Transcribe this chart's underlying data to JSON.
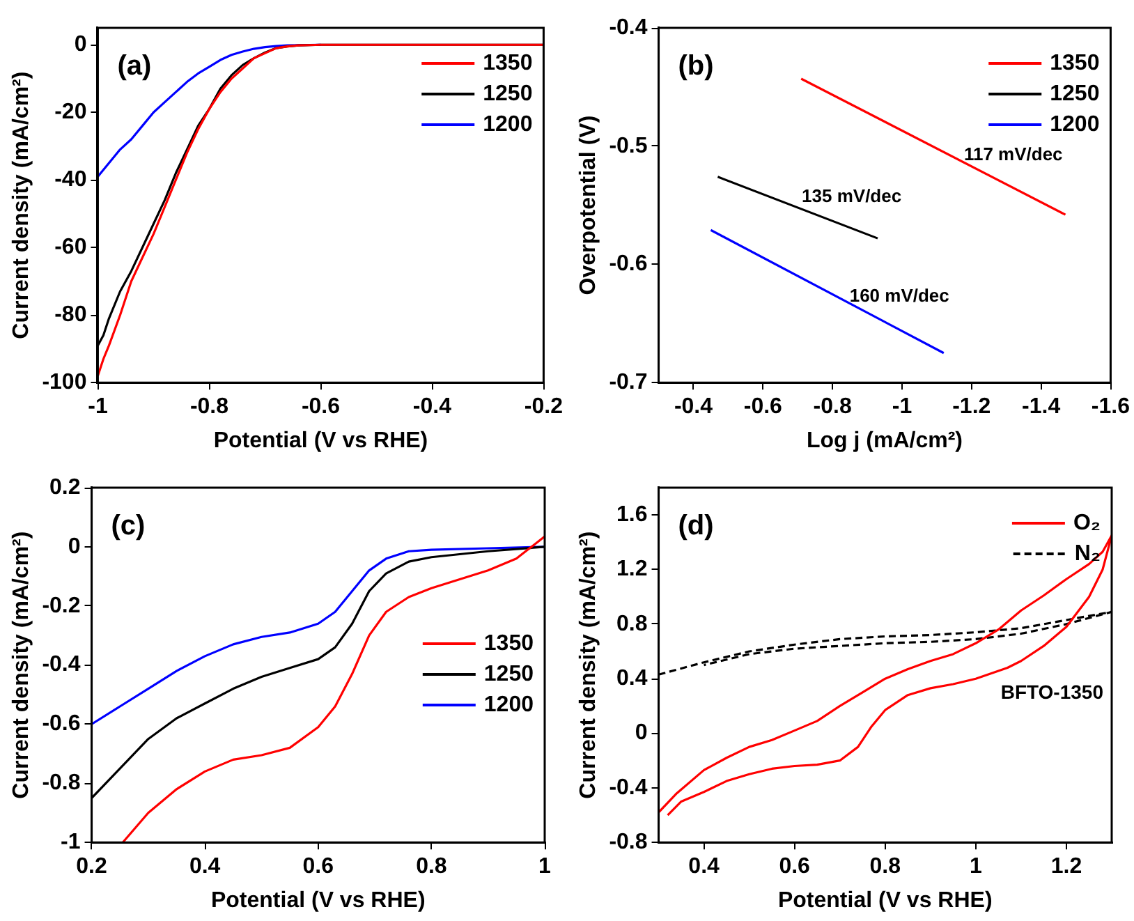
{
  "chart_data": [
    {
      "type": "line",
      "xlabel": "Potential (V vs RHE)",
      "ylabel": "Current density (mA/cm²)",
      "xlim": [
        -1,
        -0.2
      ],
      "xticks": [
        -1,
        -0.8,
        -0.6,
        -0.4,
        -0.2
      ],
      "ylim": [
        -100,
        5
      ],
      "yticks": [
        -100,
        -80,
        -60,
        -40,
        -20,
        0
      ],
      "grid": false,
      "legend": "top right",
      "marker": "none",
      "line_style": "solid",
      "annotations": [
        "(a)"
      ],
      "series": [
        {
          "name": "1350",
          "color": "#ff0000",
          "x": [
            -1,
            -0.99,
            -0.98,
            -0.96,
            -0.94,
            -0.92,
            -0.9,
            -0.88,
            -0.86,
            -0.84,
            -0.82,
            -0.8,
            -0.78,
            -0.76,
            -0.74,
            -0.72,
            -0.7,
            -0.68,
            -0.66,
            -0.64,
            -0.62,
            -0.6,
            -0.5,
            -0.4,
            -0.3,
            -0.2
          ],
          "values": [
            -98,
            -93,
            -89,
            -80,
            -70,
            -63,
            -56,
            -48,
            -40,
            -32,
            -25,
            -19,
            -14,
            -10,
            -7,
            -4,
            -2.5,
            -1,
            -0.5,
            -0.2,
            -0.1,
            0,
            0,
            0,
            0,
            0
          ]
        },
        {
          "name": "1250",
          "color": "#000000",
          "x": [
            -1,
            -0.99,
            -0.98,
            -0.96,
            -0.94,
            -0.92,
            -0.9,
            -0.88,
            -0.86,
            -0.84,
            -0.82,
            -0.8,
            -0.78,
            -0.76,
            -0.74,
            -0.72,
            -0.7,
            -0.68,
            -0.66,
            -0.64,
            -0.62,
            -0.6,
            -0.5,
            -0.4,
            -0.3,
            -0.2
          ],
          "values": [
            -89,
            -86,
            -81,
            -73,
            -67,
            -60,
            -53,
            -46,
            -38,
            -31,
            -24,
            -19,
            -13,
            -9,
            -6,
            -4,
            -2.3,
            -1,
            -0.5,
            -0.2,
            -0.1,
            0,
            0,
            0,
            0,
            0
          ]
        },
        {
          "name": "1200",
          "color": "#0000ff",
          "x": [
            -1,
            -0.98,
            -0.96,
            -0.94,
            -0.92,
            -0.9,
            -0.88,
            -0.86,
            -0.84,
            -0.82,
            -0.8,
            -0.78,
            -0.76,
            -0.74,
            -0.72,
            -0.7,
            -0.68,
            -0.66,
            -0.64,
            -0.6
          ],
          "values": [
            -39,
            -35,
            -31,
            -28,
            -24,
            -20,
            -17,
            -14,
            -11,
            -8.5,
            -6.5,
            -4.5,
            -3,
            -2,
            -1.2,
            -0.7,
            -0.4,
            -0.2,
            -0.1,
            0
          ]
        }
      ]
    },
    {
      "type": "line",
      "xlabel": "Log j (mA/cm²)",
      "ylabel": "Overpotential (V)",
      "xlim": [
        -0.3,
        -1.6
      ],
      "xticks": [
        -0.4,
        -0.6,
        -0.8,
        -1,
        -1.2,
        -1.4,
        -1.6
      ],
      "ylim": [
        -0.7,
        -0.4
      ],
      "yticks": [
        -0.7,
        -0.6,
        -0.5,
        -0.4
      ],
      "grid": false,
      "legend": "top right",
      "marker": "none",
      "line_style": "solid",
      "annotations": [
        "(b)",
        "117 mV/dec",
        "135 mV/dec",
        "160 mV/dec"
      ],
      "series": [
        {
          "name": "1350",
          "color": "#ff0000",
          "x": [
            -0.71,
            -1.47
          ],
          "values": [
            -0.443,
            -0.558
          ]
        },
        {
          "name": "1250",
          "color": "#000000",
          "x": [
            -0.47,
            -0.93
          ],
          "values": [
            -0.526,
            -0.578
          ]
        },
        {
          "name": "1200",
          "color": "#0000ff",
          "x": [
            -0.45,
            -1.12
          ],
          "values": [
            -0.571,
            -0.675
          ]
        }
      ]
    },
    {
      "type": "line",
      "xlabel": "Potential (V vs RHE)",
      "ylabel": "Current density (mA/cm²)",
      "xlim": [
        0.2,
        1
      ],
      "xticks": [
        0.2,
        0.4,
        0.6,
        0.8,
        1
      ],
      "ylim": [
        -1,
        0.2
      ],
      "yticks": [
        -1,
        -0.8,
        -0.6,
        -0.4,
        -0.2,
        0,
        0.2
      ],
      "grid": false,
      "legend": "right",
      "marker": "none",
      "line_style": "solid",
      "annotations": [
        "(c)"
      ],
      "series": [
        {
          "name": "1350",
          "color": "#ff0000",
          "x": [
            0.255,
            0.3,
            0.35,
            0.4,
            0.45,
            0.5,
            0.55,
            0.6,
            0.63,
            0.66,
            0.69,
            0.72,
            0.76,
            0.8,
            0.85,
            0.9,
            0.95,
            0.97,
            1
          ],
          "values": [
            -1,
            -0.9,
            -0.82,
            -0.76,
            -0.72,
            -0.705,
            -0.68,
            -0.61,
            -0.54,
            -0.43,
            -0.3,
            -0.22,
            -0.17,
            -0.14,
            -0.11,
            -0.08,
            -0.04,
            -0.01,
            0.035
          ]
        },
        {
          "name": "1250",
          "color": "#000000",
          "x": [
            0.2,
            0.25,
            0.3,
            0.35,
            0.4,
            0.45,
            0.5,
            0.55,
            0.6,
            0.63,
            0.66,
            0.69,
            0.72,
            0.76,
            0.8,
            0.9,
            1
          ],
          "values": [
            -0.85,
            -0.75,
            -0.65,
            -0.58,
            -0.53,
            -0.48,
            -0.44,
            -0.41,
            -0.38,
            -0.34,
            -0.26,
            -0.15,
            -0.09,
            -0.05,
            -0.035,
            -0.015,
            0
          ]
        },
        {
          "name": "1200",
          "color": "#0000ff",
          "x": [
            0.2,
            0.25,
            0.3,
            0.35,
            0.4,
            0.45,
            0.5,
            0.55,
            0.6,
            0.63,
            0.66,
            0.69,
            0.72,
            0.76,
            0.8,
            0.9,
            1
          ],
          "values": [
            -0.6,
            -0.54,
            -0.48,
            -0.42,
            -0.37,
            -0.33,
            -0.305,
            -0.29,
            -0.26,
            -0.22,
            -0.15,
            -0.08,
            -0.04,
            -0.015,
            -0.01,
            -0.005,
            0
          ]
        }
      ]
    },
    {
      "type": "line",
      "xlabel": "Potential (V vs RHE)",
      "ylabel": "Current density (mA/cm²)",
      "xlim": [
        0.3,
        1.3
      ],
      "xticks": [
        0.4,
        0.6,
        0.8,
        1,
        1.2
      ],
      "ylim": [
        -0.8,
        1.8
      ],
      "yticks": [
        -0.8,
        -0.4,
        0,
        0.4,
        0.8,
        1.2,
        1.6
      ],
      "grid": false,
      "legend": "top right",
      "marker": "none",
      "annotations": [
        "(d)",
        "BFTO-1350"
      ],
      "series": [
        {
          "name": "O₂",
          "color": "#ff0000",
          "line_style": "solid",
          "x": [
            0.3,
            0.34,
            0.4,
            0.45,
            0.5,
            0.55,
            0.6,
            0.65,
            0.7,
            0.75,
            0.8,
            0.85,
            0.9,
            0.95,
            1,
            1.05,
            1.1,
            1.15,
            1.2,
            1.25,
            1.28,
            1.3,
            1.28,
            1.25,
            1.2,
            1.15,
            1.1,
            1.07,
            1,
            0.95,
            0.9,
            0.85,
            0.8,
            0.77,
            0.74,
            0.7,
            0.65,
            0.6,
            0.55,
            0.5,
            0.45,
            0.4,
            0.35,
            0.32
          ],
          "values": [
            -0.58,
            -0.44,
            -0.27,
            -0.18,
            -0.1,
            -0.05,
            0.02,
            0.09,
            0.2,
            0.3,
            0.4,
            0.47,
            0.53,
            0.58,
            0.66,
            0.76,
            0.9,
            1.01,
            1.13,
            1.24,
            1.33,
            1.45,
            1.2,
            1,
            0.78,
            0.64,
            0.53,
            0.48,
            0.4,
            0.36,
            0.33,
            0.28,
            0.17,
            0.05,
            -0.1,
            -0.2,
            -0.23,
            -0.24,
            -0.26,
            -0.3,
            -0.35,
            -0.43,
            -0.5,
            -0.6
          ]
        },
        {
          "name": "N₂",
          "color": "#000000",
          "line_style": "dashed",
          "x": [
            0.3,
            0.4,
            0.5,
            0.6,
            0.7,
            0.8,
            0.9,
            1,
            1.1,
            1.2,
            1.3,
            1.2,
            1.1,
            1,
            0.9,
            0.8,
            0.7,
            0.6,
            0.5,
            0.4
          ],
          "values": [
            0.43,
            0.52,
            0.6,
            0.65,
            0.69,
            0.71,
            0.72,
            0.74,
            0.77,
            0.83,
            0.89,
            0.8,
            0.73,
            0.69,
            0.67,
            0.66,
            0.64,
            0.62,
            0.58,
            0.5
          ]
        }
      ]
    }
  ]
}
